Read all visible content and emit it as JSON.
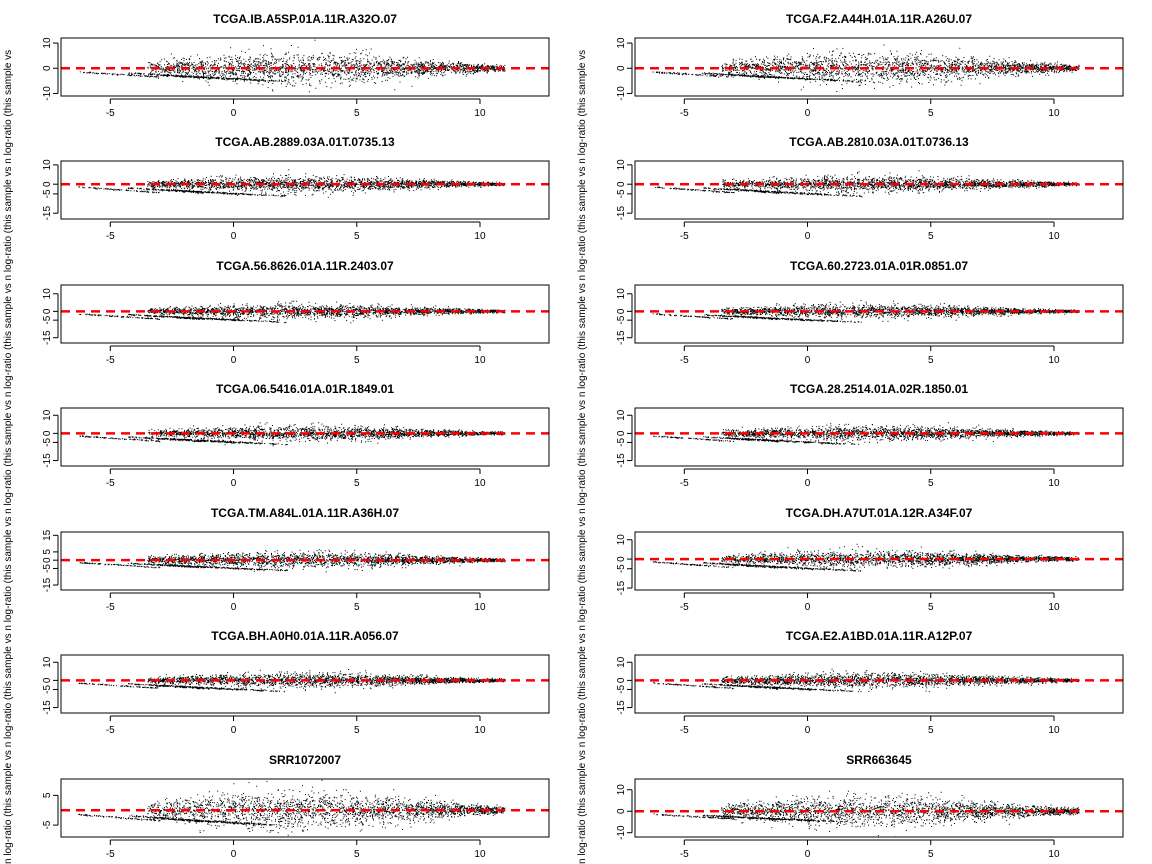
{
  "figure": {
    "ylabel_text": "n log-ratio (this sample vs n log-ratio (this sample vs n log-ratio (this sample vs n log-ratio (this sample vs n log-ratio (this sample vs n log-ratio (this sample vs n log-ratio (this sample vs"
  },
  "colors": {
    "points": "#000000",
    "reference_line": "#ff0000",
    "frame": "#000000"
  },
  "chart_data": [
    {
      "type": "scatter",
      "title": "TCGA.IB.A5SP.01A.11R.A32O.07",
      "xlim": [
        -7,
        12.8
      ],
      "ylim": [
        -11,
        12
      ],
      "xticks": [
        -5,
        0,
        5,
        10
      ],
      "yticks": [
        -10,
        0,
        10
      ],
      "hline": 0
    },
    {
      "type": "scatter",
      "title": "TCGA.F2.A44H.01A.11R.A26U.07",
      "xlim": [
        -7,
        12.8
      ],
      "ylim": [
        -11,
        12
      ],
      "xticks": [
        -5,
        0,
        5,
        10
      ],
      "yticks": [
        -10,
        0,
        10
      ],
      "hline": 0
    },
    {
      "type": "scatter",
      "title": "TCGA.AB.2889.03A.01T.0735.13",
      "xlim": [
        -7,
        12.8
      ],
      "ylim": [
        -18,
        12
      ],
      "xticks": [
        -5,
        0,
        5,
        10
      ],
      "yticks": [
        -15,
        -5,
        0,
        10
      ],
      "hline": 0
    },
    {
      "type": "scatter",
      "title": "TCGA.AB.2810.03A.01T.0736.13",
      "xlim": [
        -7,
        12.8
      ],
      "ylim": [
        -18,
        12
      ],
      "xticks": [
        -5,
        0,
        5,
        10
      ],
      "yticks": [
        -15,
        -5,
        0,
        10
      ],
      "hline": 0
    },
    {
      "type": "scatter",
      "title": "TCGA.56.8626.01A.11R.2403.07",
      "xlim": [
        -7,
        12.8
      ],
      "ylim": [
        -18,
        15
      ],
      "xticks": [
        -5,
        0,
        5,
        10
      ],
      "yticks": [
        -15,
        -5,
        0,
        10
      ],
      "hline": 0
    },
    {
      "type": "scatter",
      "title": "TCGA.60.2723.01A.01R.0851.07",
      "xlim": [
        -7,
        12.8
      ],
      "ylim": [
        -18,
        15
      ],
      "xticks": [
        -5,
        0,
        5,
        10
      ],
      "yticks": [
        -15,
        -5,
        0,
        10
      ],
      "hline": 0
    },
    {
      "type": "scatter",
      "title": "TCGA.06.5416.01A.01R.1849.01",
      "xlim": [
        -7,
        12.8
      ],
      "ylim": [
        -18,
        14
      ],
      "xticks": [
        -5,
        0,
        5,
        10
      ],
      "yticks": [
        -15,
        -5,
        0,
        10
      ],
      "hline": 0
    },
    {
      "type": "scatter",
      "title": "TCGA.28.2514.01A.02R.1850.01",
      "xlim": [
        -7,
        12.8
      ],
      "ylim": [
        -18,
        14
      ],
      "xticks": [
        -5,
        0,
        5,
        10
      ],
      "yticks": [
        -15,
        -5,
        0,
        10
      ],
      "hline": 0
    },
    {
      "type": "scatter",
      "title": "TCGA.TM.A84L.01A.11R.A36H.07",
      "xlim": [
        -7,
        12.8
      ],
      "ylim": [
        -18,
        17
      ],
      "xticks": [
        -5,
        0,
        5,
        10
      ],
      "yticks": [
        -15,
        -5,
        0,
        5,
        15
      ],
      "hline": 0
    },
    {
      "type": "scatter",
      "title": "TCGA.DH.A7UT.01A.12R.A34F.07",
      "xlim": [
        -7,
        12.8
      ],
      "ylim": [
        -16,
        14
      ],
      "xticks": [
        -5,
        0,
        5,
        10
      ],
      "yticks": [
        -15,
        -5,
        0,
        10
      ],
      "hline": 0
    },
    {
      "type": "scatter",
      "title": "TCGA.BH.A0H0.01A.11R.A056.07",
      "xlim": [
        -7,
        12.8
      ],
      "ylim": [
        -18,
        14
      ],
      "xticks": [
        -5,
        0,
        5,
        10
      ],
      "yticks": [
        -15,
        -5,
        0,
        10
      ],
      "hline": 0
    },
    {
      "type": "scatter",
      "title": "TCGA.E2.A1BD.01A.11R.A12P.07",
      "xlim": [
        -7,
        12.8
      ],
      "ylim": [
        -18,
        14
      ],
      "xticks": [
        -5,
        0,
        5,
        10
      ],
      "yticks": [
        -15,
        -5,
        0,
        10
      ],
      "hline": 0
    },
    {
      "type": "scatter",
      "title": "SRR1072007",
      "xlim": [
        -7,
        12.8
      ],
      "ylim": [
        -9,
        10.5
      ],
      "xticks": [
        -5,
        0,
        5,
        10
      ],
      "yticks": [
        -5,
        5
      ],
      "hline": 0
    },
    {
      "type": "scatter",
      "title": "SRR663645",
      "xlim": [
        -7,
        12.8
      ],
      "ylim": [
        -12,
        15
      ],
      "xticks": [
        -5,
        0,
        5,
        10
      ],
      "yticks": [
        -10,
        0,
        10
      ],
      "hline": 0
    }
  ]
}
